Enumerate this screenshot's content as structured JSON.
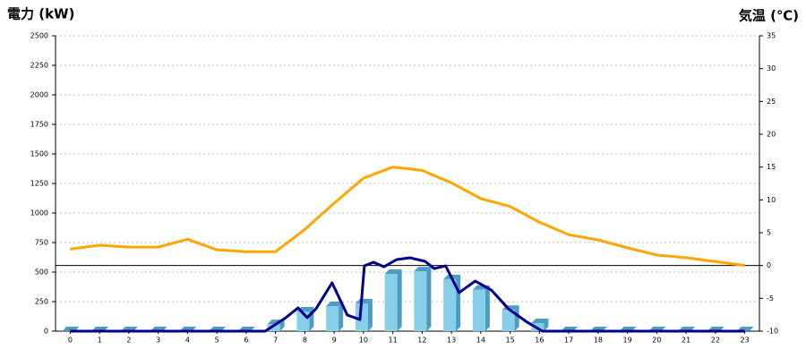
{
  "chart_data": {
    "type": "combo",
    "y_label": "電力 (kW)",
    "y2_label": "気温 (℃)",
    "categories": [
      "0",
      "1",
      "2",
      "3",
      "4",
      "5",
      "6",
      "7",
      "8",
      "9",
      "10",
      "11",
      "12",
      "13",
      "14",
      "15",
      "16",
      "17",
      "18",
      "19",
      "20",
      "21",
      "22",
      "23"
    ],
    "series": [
      {
        "type": "bar",
        "color": "#87ceeb",
        "side_color": "#4a9cc0",
        "values": [
          0,
          0,
          0,
          0,
          0,
          0,
          0,
          60,
          167,
          212,
          235,
          485,
          507,
          440,
          350,
          180,
          68,
          0,
          0,
          0,
          0,
          0,
          0,
          0
        ]
      },
      {
        "type": "line",
        "color": "#00008b",
        "x": [
          0,
          6.65,
          7.35,
          7.77,
          8.08,
          8.38,
          8.93,
          9.45,
          9.88,
          10.03,
          10.34,
          10.7,
          11.13,
          11.59,
          12.1,
          12.41,
          12.8,
          13.26,
          13.81,
          14.36,
          14.94,
          15.58,
          16.1,
          23
        ],
        "values": [
          0,
          0,
          114,
          197,
          114,
          189,
          409,
          136,
          98,
          553,
          583,
          545,
          606,
          621,
          591,
          530,
          553,
          326,
          424,
          348,
          189,
          76,
          0,
          0
        ]
      },
      {
        "type": "line",
        "axis": "y2",
        "color": "#ffa500",
        "values": [
          2.5,
          3.1,
          2.8,
          2.8,
          4.0,
          2.4,
          2.1,
          2.1,
          5.5,
          9.5,
          13.3,
          15.0,
          14.5,
          12.6,
          10.2,
          9.0,
          6.6,
          4.7,
          3.9,
          2.7,
          1.6,
          1.2,
          0.6,
          0.0
        ]
      }
    ],
    "ylim": [
      0,
      2500
    ],
    "yticks": [
      0,
      250,
      500,
      750,
      1000,
      1250,
      1500,
      1750,
      2000,
      2250,
      2500
    ],
    "y2lim": [
      -10,
      35
    ],
    "y2ticks": [
      -10,
      -5,
      0,
      5,
      10,
      15,
      20,
      25,
      30,
      35
    ],
    "grid": true,
    "y2_zero_line": true,
    "y_label_color": "#1a6fb5",
    "y2_label_color": "#f08020"
  }
}
